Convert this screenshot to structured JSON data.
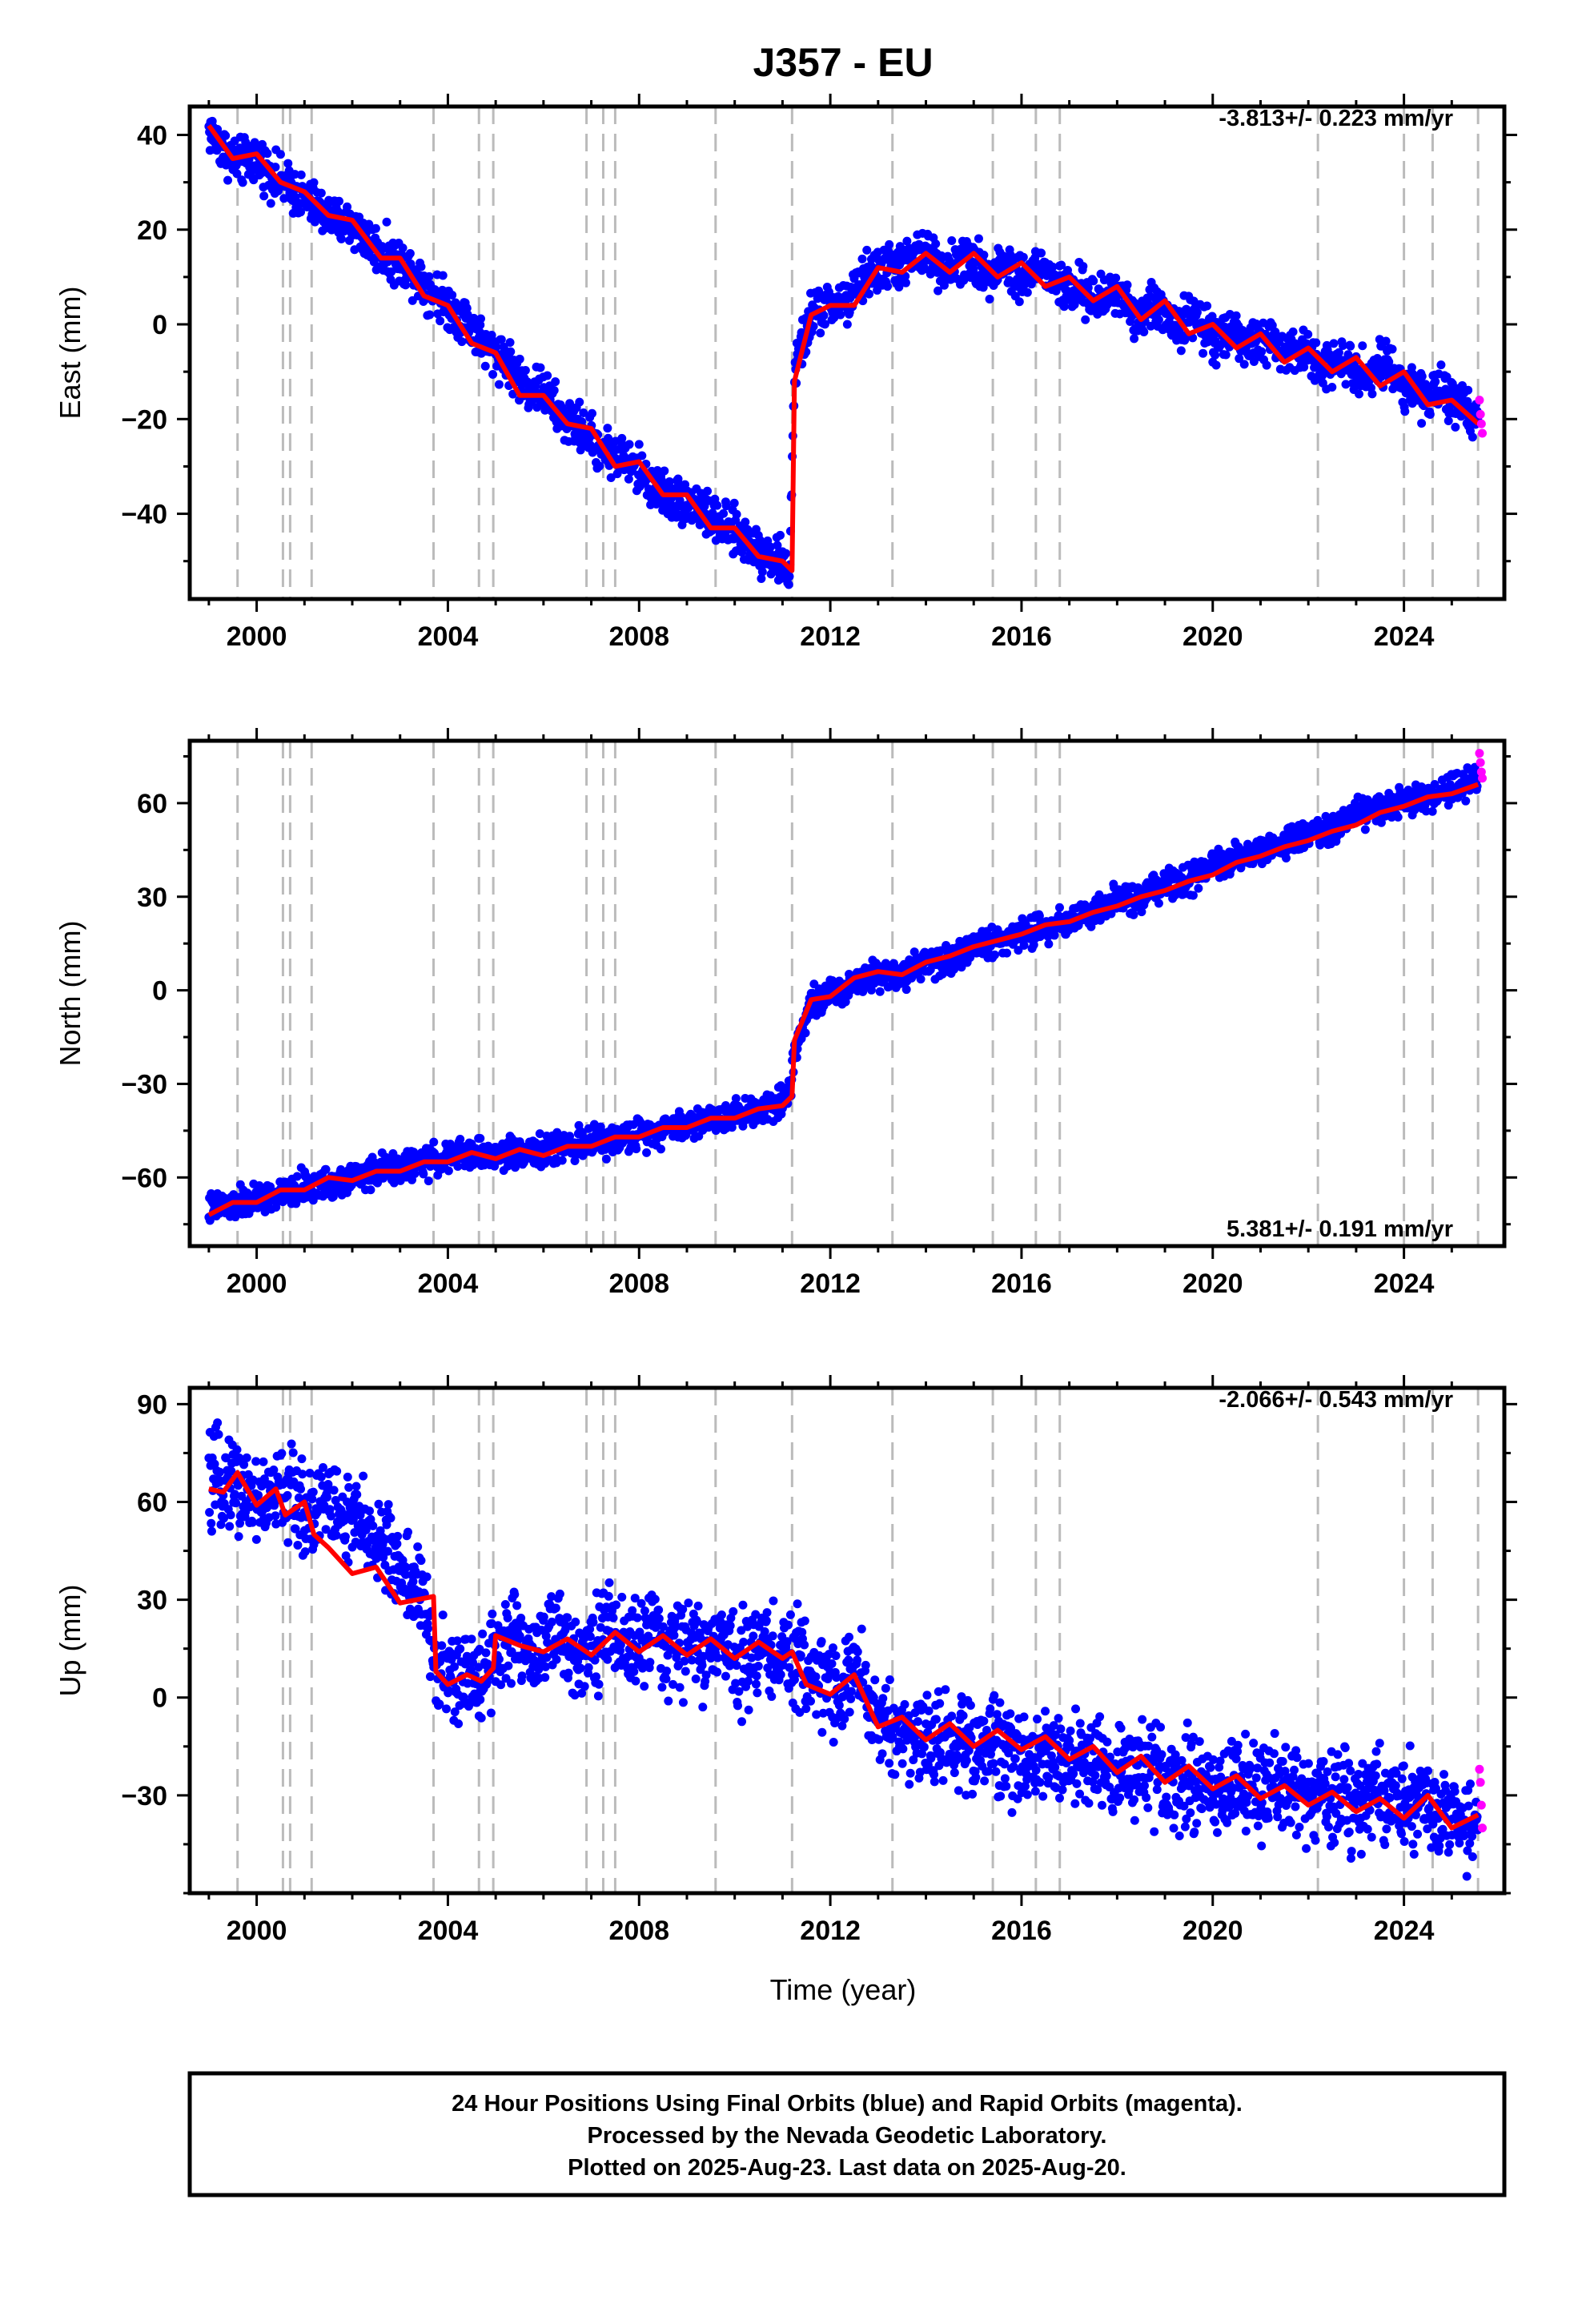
{
  "title": "J357 - EU",
  "xlabel": "Time (year)",
  "footer": {
    "line1": "24 Hour Positions Using Final Orbits (blue) and Rapid Orbits (magenta).",
    "line2": "Processed by the Nevada Geodetic Laboratory.",
    "line3": "Plotted on 2025-Aug-23. Last data on 2025-Aug-20."
  },
  "colors": {
    "final": "#0000ff",
    "rapid": "#ff00ff",
    "model": "#ff0000",
    "event_lines": "#bbbbbb",
    "frame": "#000000"
  },
  "chart_data": [
    {
      "type": "scatter",
      "component": "east",
      "ylabel": "East (mm)",
      "rate_text": "-3.813+/- 0.223 mm/yr",
      "rate_position": "top-right",
      "xlim": [
        1998.6,
        2026.1
      ],
      "ylim": [
        -58,
        46
      ],
      "x_ticks": [
        2000,
        2004,
        2008,
        2012,
        2016,
        2020,
        2024
      ],
      "y_ticks": [
        40,
        20,
        0,
        -20,
        -40
      ],
      "y_tick_labels": [
        "40",
        "20",
        "0",
        "−20",
        "−40"
      ],
      "event_lines": [
        1999.6,
        2000.55,
        2000.7,
        2001.15,
        2003.7,
        2004.65,
        2004.95,
        2006.9,
        2007.25,
        2007.5,
        2009.6,
        2011.2,
        2013.3,
        2015.4,
        2016.3,
        2016.8,
        2022.2,
        2024.0,
        2024.6,
        2025.55
      ],
      "series": [
        {
          "role": "final_orbit_positions",
          "x": [
            1999.0,
            1999.3,
            1999.6,
            2000.0,
            2000.4,
            2000.8,
            2001.2,
            2001.6,
            2002.0,
            2002.4,
            2002.8,
            2003.2,
            2003.6,
            2004.0,
            2004.4,
            2004.8,
            2005.2,
            2005.6,
            2006.0,
            2006.4,
            2006.8,
            2007.2,
            2007.6,
            2008.0,
            2008.4,
            2008.8,
            2009.2,
            2009.6,
            2010.0,
            2010.4,
            2010.8,
            2011.15,
            2011.25,
            2011.6,
            2012.0,
            2012.4,
            2012.8,
            2013.2,
            2013.6,
            2014.0,
            2014.4,
            2014.8,
            2015.2,
            2015.6,
            2016.0,
            2016.4,
            2016.8,
            2017.2,
            2017.6,
            2018.0,
            2018.4,
            2018.8,
            2019.2,
            2019.6,
            2020.0,
            2020.4,
            2020.8,
            2021.2,
            2021.6,
            2022.0,
            2022.4,
            2022.8,
            2023.2,
            2023.6,
            2024.0,
            2024.4,
            2024.8,
            2025.2,
            2025.55
          ],
          "y": [
            41,
            37,
            34,
            35,
            31,
            28,
            25,
            22,
            21,
            17,
            14,
            12,
            8,
            4,
            1,
            -5,
            -7,
            -13,
            -14,
            -20,
            -22,
            -26,
            -28,
            -31,
            -35,
            -37,
            -38,
            -42,
            -44,
            -47,
            -49,
            -52,
            -10,
            2,
            4,
            5,
            11,
            12,
            13,
            15,
            12,
            14,
            11,
            13,
            10,
            12,
            8,
            7,
            5,
            7,
            2,
            4,
            0,
            2,
            -3,
            -1,
            -5,
            -3,
            -7,
            -5,
            -9,
            -7,
            -11,
            -8,
            -12,
            -15,
            -14,
            -18,
            -22
          ]
        },
        {
          "role": "model_fit",
          "x": [
            1999.0,
            1999.5,
            2000.0,
            2000.5,
            2001.0,
            2001.5,
            2002.0,
            2002.6,
            2003.0,
            2003.5,
            2004.0,
            2004.5,
            2005.0,
            2005.5,
            2006.0,
            2006.5,
            2007.0,
            2007.5,
            2008.0,
            2008.5,
            2009.0,
            2009.5,
            2010.0,
            2010.5,
            2011.0,
            2011.2,
            2011.25,
            2011.6,
            2012.0,
            2012.5,
            2013.0,
            2013.5,
            2014.0,
            2014.5,
            2015.0,
            2015.5,
            2016.0,
            2016.5,
            2017.0,
            2017.5,
            2018.0,
            2018.5,
            2019.0,
            2019.5,
            2020.0,
            2020.5,
            2021.0,
            2021.5,
            2022.0,
            2022.5,
            2023.0,
            2023.5,
            2024.0,
            2024.5,
            2025.0,
            2025.55
          ],
          "y": [
            42,
            35,
            36,
            30,
            28,
            23,
            22,
            14,
            14,
            6,
            4,
            -4,
            -6,
            -15,
            -15,
            -21,
            -22,
            -30,
            -29,
            -36,
            -36,
            -43,
            -43,
            -49,
            -50,
            -52,
            -12,
            2,
            4,
            4,
            12,
            11,
            15,
            11,
            15,
            10,
            13,
            8,
            10,
            5,
            8,
            1,
            5,
            -2,
            0,
            -5,
            -2,
            -8,
            -5,
            -10,
            -7,
            -13,
            -10,
            -17,
            -16,
            -21
          ]
        },
        {
          "role": "rapid_orbit_positions",
          "x": [
            2025.58,
            2025.6,
            2025.62,
            2025.64
          ],
          "y": [
            -16,
            -19,
            -21,
            -23
          ]
        }
      ]
    },
    {
      "type": "scatter",
      "component": "north",
      "ylabel": "North (mm)",
      "rate_text": "5.381+/- 0.191 mm/yr",
      "rate_position": "bottom-right",
      "xlim": [
        1998.6,
        2026.1
      ],
      "ylim": [
        -82,
        80
      ],
      "x_ticks": [
        2000,
        2004,
        2008,
        2012,
        2016,
        2020,
        2024
      ],
      "y_ticks": [
        60,
        30,
        0,
        -30,
        -60
      ],
      "y_tick_labels": [
        "60",
        "30",
        "0",
        "−30",
        "−60"
      ],
      "event_lines": [
        1999.6,
        2000.55,
        2000.7,
        2001.15,
        2003.7,
        2004.65,
        2004.95,
        2006.9,
        2007.25,
        2007.5,
        2009.6,
        2011.2,
        2013.3,
        2015.4,
        2016.3,
        2016.8,
        2022.2,
        2024.0,
        2024.6,
        2025.55
      ],
      "series": [
        {
          "role": "final_orbit_positions",
          "x": [
            1999.0,
            1999.5,
            2000.0,
            2000.5,
            2001.0,
            2001.5,
            2002.0,
            2002.5,
            2003.0,
            2003.5,
            2004.0,
            2004.5,
            2005.0,
            2005.5,
            2006.0,
            2006.5,
            2007.0,
            2007.5,
            2008.0,
            2008.5,
            2009.0,
            2009.5,
            2010.0,
            2010.5,
            2011.0,
            2011.15,
            2011.25,
            2011.6,
            2012.0,
            2012.5,
            2013.0,
            2013.5,
            2014.0,
            2014.5,
            2015.0,
            2015.5,
            2016.0,
            2016.5,
            2017.0,
            2017.5,
            2018.0,
            2018.5,
            2019.0,
            2019.5,
            2020.0,
            2020.5,
            2021.0,
            2021.5,
            2022.0,
            2022.5,
            2023.0,
            2023.5,
            2024.0,
            2024.5,
            2025.0,
            2025.55
          ],
          "y": [
            -70,
            -69,
            -67,
            -66,
            -63,
            -62,
            -60,
            -58,
            -57,
            -55,
            -54,
            -52,
            -53,
            -51,
            -52,
            -49,
            -49,
            -48,
            -46,
            -44,
            -43,
            -41,
            -40,
            -38,
            -35,
            -33,
            -18,
            -4,
            -2,
            3,
            6,
            5,
            9,
            10,
            14,
            16,
            18,
            20,
            23,
            25,
            28,
            30,
            34,
            35,
            39,
            42,
            45,
            47,
            50,
            52,
            56,
            58,
            61,
            62,
            64,
            68
          ]
        },
        {
          "role": "model_fit",
          "x": [
            1999.0,
            1999.5,
            2000.0,
            2000.5,
            2001.0,
            2001.5,
            2002.0,
            2002.5,
            2003.0,
            2003.5,
            2004.0,
            2004.5,
            2005.0,
            2005.5,
            2006.0,
            2006.5,
            2007.0,
            2007.5,
            2008.0,
            2008.5,
            2009.0,
            2009.5,
            2010.0,
            2010.5,
            2011.0,
            2011.2,
            2011.25,
            2011.6,
            2012.0,
            2012.5,
            2013.0,
            2013.5,
            2014.0,
            2014.5,
            2015.0,
            2015.5,
            2016.0,
            2016.5,
            2017.0,
            2017.5,
            2018.0,
            2018.5,
            2019.0,
            2019.5,
            2020.0,
            2020.5,
            2021.0,
            2021.5,
            2022.0,
            2022.5,
            2023.0,
            2023.5,
            2024.0,
            2024.5,
            2025.0,
            2025.55
          ],
          "y": [
            -72,
            -68,
            -68,
            -64,
            -64,
            -60,
            -61,
            -58,
            -58,
            -55,
            -55,
            -52,
            -54,
            -51,
            -53,
            -50,
            -50,
            -47,
            -47,
            -44,
            -44,
            -41,
            -41,
            -38,
            -37,
            -34,
            -16,
            -3,
            -2,
            4,
            6,
            5,
            9,
            11,
            14,
            16,
            18,
            21,
            22,
            25,
            27,
            30,
            32,
            35,
            37,
            41,
            43,
            46,
            48,
            51,
            53,
            57,
            59,
            62,
            63,
            66
          ]
        },
        {
          "role": "rapid_orbit_positions",
          "x": [
            2025.58,
            2025.6,
            2025.62,
            2025.64
          ],
          "y": [
            76,
            73,
            70,
            68
          ]
        }
      ]
    },
    {
      "type": "scatter",
      "component": "up",
      "ylabel": "Up (mm)",
      "rate_text": "-2.066+/- 0.543 mm/yr",
      "rate_position": "top-right",
      "xlim": [
        1998.6,
        2026.1
      ],
      "ylim": [
        -60,
        95
      ],
      "x_ticks": [
        2000,
        2004,
        2008,
        2012,
        2016,
        2020,
        2024
      ],
      "x_tick_labels": [
        "2000",
        "2004",
        "2008",
        "2012",
        "2016",
        "2020",
        "2024"
      ],
      "y_ticks": [
        90,
        60,
        30,
        0,
        -30
      ],
      "y_tick_labels": [
        "90",
        "60",
        "30",
        "0",
        "−30"
      ],
      "event_lines": [
        1999.6,
        2000.55,
        2000.7,
        2001.15,
        2003.7,
        2004.65,
        2004.95,
        2006.9,
        2007.25,
        2007.5,
        2009.6,
        2011.2,
        2013.3,
        2015.4,
        2016.3,
        2016.8,
        2022.2,
        2024.0,
        2024.6,
        2025.55
      ],
      "series": [
        {
          "role": "final_orbit_positions",
          "x": [
            1999.0,
            1999.4,
            1999.8,
            2000.2,
            2000.6,
            2001.0,
            2001.4,
            2001.8,
            2002.2,
            2002.6,
            2003.0,
            2003.4,
            2003.8,
            2004.2,
            2004.6,
            2005.0,
            2005.4,
            2005.8,
            2006.2,
            2006.6,
            2007.0,
            2007.4,
            2007.8,
            2008.2,
            2008.6,
            2009.0,
            2009.4,
            2009.8,
            2010.2,
            2010.6,
            2011.0,
            2011.4,
            2011.8,
            2012.2,
            2012.6,
            2013.0,
            2013.4,
            2013.8,
            2014.2,
            2014.6,
            2015.0,
            2015.4,
            2015.8,
            2016.2,
            2016.6,
            2017.0,
            2017.4,
            2017.8,
            2018.2,
            2018.6,
            2019.0,
            2019.4,
            2019.8,
            2020.2,
            2020.6,
            2021.0,
            2021.4,
            2021.8,
            2022.2,
            2022.6,
            2023.0,
            2023.4,
            2023.8,
            2024.2,
            2024.6,
            2025.0,
            2025.55
          ],
          "y": [
            64,
            68,
            62,
            60,
            64,
            57,
            61,
            55,
            52,
            48,
            40,
            33,
            8,
            5,
            6,
            15,
            18,
            13,
            20,
            14,
            17,
            21,
            15,
            19,
            14,
            18,
            13,
            17,
            12,
            16,
            12,
            10,
            6,
            3,
            8,
            -8,
            -10,
            -12,
            -14,
            -12,
            -16,
            -14,
            -17,
            -18,
            -16,
            -20,
            -19,
            -23,
            -21,
            -24,
            -23,
            -26,
            -25,
            -28,
            -27,
            -30,
            -28,
            -30,
            -32,
            -30,
            -33,
            -31,
            -34,
            -32,
            -35,
            -37,
            -40
          ]
        },
        {
          "role": "model_fit",
          "x": [
            1999.0,
            1999.3,
            1999.6,
            2000.0,
            2000.4,
            2000.6,
            2001.0,
            2001.2,
            2001.5,
            2002.0,
            2002.5,
            2003.0,
            2003.7,
            2003.75,
            2004.0,
            2004.4,
            2004.7,
            2004.95,
            2005.0,
            2005.5,
            2006.0,
            2006.5,
            2007.0,
            2007.5,
            2008.0,
            2008.5,
            2009.0,
            2009.5,
            2010.0,
            2010.5,
            2011.0,
            2011.2,
            2011.5,
            2012.0,
            2012.5,
            2013.0,
            2013.5,
            2014.0,
            2014.5,
            2015.0,
            2015.5,
            2016.0,
            2016.5,
            2017.0,
            2017.5,
            2018.0,
            2018.5,
            2019.0,
            2019.5,
            2020.0,
            2020.5,
            2021.0,
            2021.5,
            2022.0,
            2022.5,
            2023.0,
            2023.5,
            2024.0,
            2024.5,
            2025.0,
            2025.55
          ],
          "y": [
            64,
            63,
            69,
            59,
            64,
            56,
            60,
            50,
            46,
            38,
            40,
            29,
            31,
            8,
            4,
            7,
            5,
            9,
            19,
            16,
            14,
            18,
            13,
            20,
            14,
            19,
            13,
            18,
            12,
            17,
            12,
            14,
            4,
            1,
            7,
            -9,
            -6,
            -13,
            -8,
            -15,
            -10,
            -16,
            -12,
            -19,
            -15,
            -23,
            -18,
            -26,
            -21,
            -28,
            -24,
            -31,
            -27,
            -33,
            -29,
            -35,
            -31,
            -37,
            -30,
            -40,
            -36
          ]
        },
        {
          "role": "rapid_orbit_positions",
          "x": [
            2025.58,
            2025.6,
            2025.62,
            2025.64
          ],
          "y": [
            -22,
            -26,
            -33,
            -40
          ]
        }
      ]
    }
  ]
}
